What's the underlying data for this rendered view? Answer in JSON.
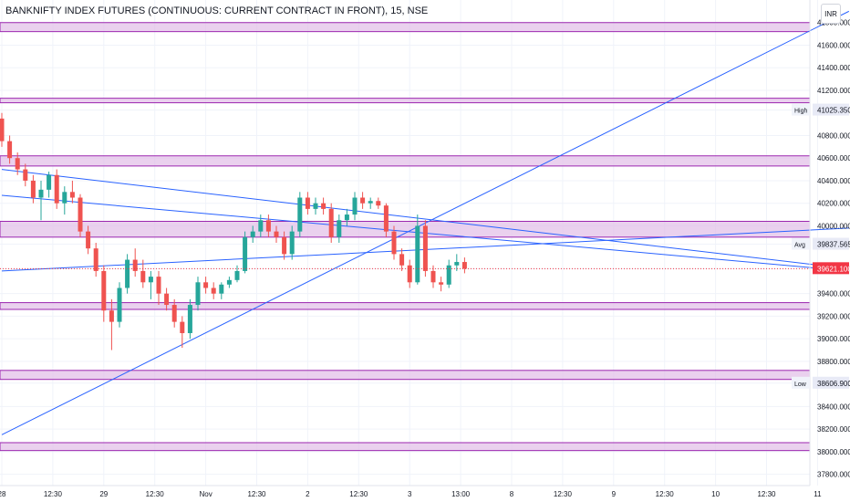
{
  "header": {
    "title": "BANKNIFTY INDEX FUTURES (CONTINUOUS: CURRENT CONTRACT IN FRONT), 15, NSE",
    "currency": "INR"
  },
  "colors": {
    "up": "#26a69a",
    "down": "#ef5350",
    "zone_fill": "#e1bee7",
    "zone_stroke": "#9c27b0",
    "trendline": "#2962ff",
    "last_price": "#f23645",
    "grid": "#f0f3fa"
  },
  "chart_data": {
    "type": "candlestick",
    "symbol": "BANKNIFTY INDEX FUTURES (CONTINUOUS: CURRENT CONTRACT IN FRONT)",
    "timeframe": "15",
    "exchange": "NSE",
    "grid": true,
    "y_range": [
      37700,
      42000
    ],
    "y_ticks": [
      "41800.000",
      "41600.000",
      "41400.000",
      "41200.000",
      "41025.350",
      "40800.000",
      "40600.000",
      "40400.000",
      "40200.000",
      "40000.000",
      "39837.565",
      "39621.100",
      "39400.000",
      "39200.000",
      "39000.000",
      "38800.000",
      "38606.900",
      "38400.000",
      "38200.000",
      "38000.000",
      "37800.000"
    ],
    "x_ticks": [
      "28",
      "12:30",
      "29",
      "12:30",
      "Nov",
      "12:30",
      "2",
      "12:30",
      "3",
      "13:00",
      "8",
      "12:30",
      "9",
      "12:30",
      "10",
      "12:30",
      "11"
    ],
    "x_tick_positions": [
      0,
      6.5,
      13,
      19.5,
      26,
      32.5,
      39,
      45.5,
      52,
      58.5,
      65,
      71.5,
      78,
      84.5,
      91,
      97.5,
      104
    ],
    "markers": [
      {
        "label": "High",
        "value": "41025.350",
        "price": 41025.35
      },
      {
        "label": "Avg",
        "value": "39837.565",
        "price": 39837.565
      },
      {
        "label": "",
        "value": "39621.100",
        "price": 39621.1,
        "last": true
      },
      {
        "label": "Low",
        "value": "38606.900",
        "price": 38606.9
      }
    ],
    "zones": [
      {
        "top": 41800,
        "bottom": 41720
      },
      {
        "top": 41130,
        "bottom": 41090
      },
      {
        "top": 40620,
        "bottom": 40530
      },
      {
        "top": 40040,
        "bottom": 39900
      },
      {
        "top": 39320,
        "bottom": 39260
      },
      {
        "top": 38720,
        "bottom": 38640
      },
      {
        "top": 38080,
        "bottom": 38010
      }
    ],
    "trendlines": [
      {
        "from": [
          0,
          38150
        ],
        "to": [
          108,
          41900
        ]
      },
      {
        "from": [
          0,
          39600
        ],
        "to": [
          108,
          39980
        ]
      },
      {
        "from": [
          0,
          40500
        ],
        "to": [
          108,
          39620
        ]
      },
      {
        "from": [
          0,
          40270
        ],
        "to": [
          108,
          39600
        ]
      }
    ],
    "candles": [
      {
        "o": 40950,
        "h": 41000,
        "l": 40700,
        "c": 40750
      },
      {
        "o": 40750,
        "h": 40800,
        "l": 40550,
        "c": 40600
      },
      {
        "o": 40600,
        "h": 40650,
        "l": 40450,
        "c": 40500
      },
      {
        "o": 40500,
        "h": 40550,
        "l": 40350,
        "c": 40400
      },
      {
        "o": 40400,
        "h": 40450,
        "l": 40200,
        "c": 40250
      },
      {
        "o": 40250,
        "h": 40400,
        "l": 40050,
        "c": 40320
      },
      {
        "o": 40320,
        "h": 40480,
        "l": 40250,
        "c": 40450
      },
      {
        "o": 40450,
        "h": 40500,
        "l": 40150,
        "c": 40200
      },
      {
        "o": 40200,
        "h": 40350,
        "l": 40100,
        "c": 40300
      },
      {
        "o": 40300,
        "h": 40400,
        "l": 40200,
        "c": 40250
      },
      {
        "o": 40250,
        "h": 40280,
        "l": 39900,
        "c": 39950
      },
      {
        "o": 39950,
        "h": 40000,
        "l": 39750,
        "c": 39800
      },
      {
        "o": 39800,
        "h": 39850,
        "l": 39550,
        "c": 39600
      },
      {
        "o": 39600,
        "h": 39650,
        "l": 39150,
        "c": 39250
      },
      {
        "o": 39250,
        "h": 39350,
        "l": 38900,
        "c": 39150
      },
      {
        "o": 39150,
        "h": 39500,
        "l": 39100,
        "c": 39450
      },
      {
        "o": 39450,
        "h": 39750,
        "l": 39400,
        "c": 39700
      },
      {
        "o": 39700,
        "h": 39800,
        "l": 39550,
        "c": 39600
      },
      {
        "o": 39600,
        "h": 39700,
        "l": 39450,
        "c": 39500
      },
      {
        "o": 39500,
        "h": 39600,
        "l": 39350,
        "c": 39550
      },
      {
        "o": 39550,
        "h": 39600,
        "l": 39300,
        "c": 39400
      },
      {
        "o": 39400,
        "h": 39450,
        "l": 39250,
        "c": 39300
      },
      {
        "o": 39300,
        "h": 39350,
        "l": 39100,
        "c": 39150
      },
      {
        "o": 39150,
        "h": 39200,
        "l": 38920,
        "c": 39050
      },
      {
        "o": 39050,
        "h": 39350,
        "l": 39000,
        "c": 39300
      },
      {
        "o": 39300,
        "h": 39550,
        "l": 39250,
        "c": 39500
      },
      {
        "o": 39500,
        "h": 39550,
        "l": 39400,
        "c": 39450
      },
      {
        "o": 39450,
        "h": 39500,
        "l": 39350,
        "c": 39400
      },
      {
        "o": 39400,
        "h": 39500,
        "l": 39350,
        "c": 39480
      },
      {
        "o": 39480,
        "h": 39550,
        "l": 39450,
        "c": 39520
      },
      {
        "o": 39520,
        "h": 39650,
        "l": 39500,
        "c": 39600
      },
      {
        "o": 39600,
        "h": 39950,
        "l": 39580,
        "c": 39900
      },
      {
        "o": 39900,
        "h": 40000,
        "l": 39850,
        "c": 39950
      },
      {
        "o": 39950,
        "h": 40100,
        "l": 39900,
        "c": 40050
      },
      {
        "o": 40050,
        "h": 40100,
        "l": 39900,
        "c": 39950
      },
      {
        "o": 39950,
        "h": 40000,
        "l": 39850,
        "c": 39900
      },
      {
        "o": 39900,
        "h": 39950,
        "l": 39700,
        "c": 39750
      },
      {
        "o": 39750,
        "h": 40000,
        "l": 39700,
        "c": 39950
      },
      {
        "o": 39950,
        "h": 40300,
        "l": 39900,
        "c": 40250
      },
      {
        "o": 40250,
        "h": 40300,
        "l": 40100,
        "c": 40150
      },
      {
        "o": 40150,
        "h": 40250,
        "l": 40100,
        "c": 40200
      },
      {
        "o": 40200,
        "h": 40250,
        "l": 40100,
        "c": 40150
      },
      {
        "o": 40150,
        "h": 40200,
        "l": 39850,
        "c": 39900
      },
      {
        "o": 39900,
        "h": 40100,
        "l": 39850,
        "c": 40050
      },
      {
        "o": 40050,
        "h": 40150,
        "l": 40000,
        "c": 40100
      },
      {
        "o": 40100,
        "h": 40300,
        "l": 40050,
        "c": 40250
      },
      {
        "o": 40250,
        "h": 40300,
        "l": 40150,
        "c": 40200
      },
      {
        "o": 40200,
        "h": 40250,
        "l": 40150,
        "c": 40220
      },
      {
        "o": 40220,
        "h": 40250,
        "l": 40150,
        "c": 40180
      },
      {
        "o": 40180,
        "h": 40200,
        "l": 39900,
        "c": 39950
      },
      {
        "o": 39950,
        "h": 40000,
        "l": 39700,
        "c": 39750
      },
      {
        "o": 39750,
        "h": 39800,
        "l": 39600,
        "c": 39650
      },
      {
        "o": 39650,
        "h": 39700,
        "l": 39450,
        "c": 39500
      },
      {
        "o": 39500,
        "h": 40100,
        "l": 39480,
        "c": 40000
      },
      {
        "o": 40000,
        "h": 40050,
        "l": 39550,
        "c": 39600
      },
      {
        "o": 39600,
        "h": 39650,
        "l": 39450,
        "c": 39500
      },
      {
        "o": 39500,
        "h": 39550,
        "l": 39420,
        "c": 39480
      },
      {
        "o": 39480,
        "h": 39700,
        "l": 39450,
        "c": 39650
      },
      {
        "o": 39650,
        "h": 39750,
        "l": 39600,
        "c": 39680
      },
      {
        "o": 39680,
        "h": 39720,
        "l": 39580,
        "c": 39621
      }
    ]
  }
}
